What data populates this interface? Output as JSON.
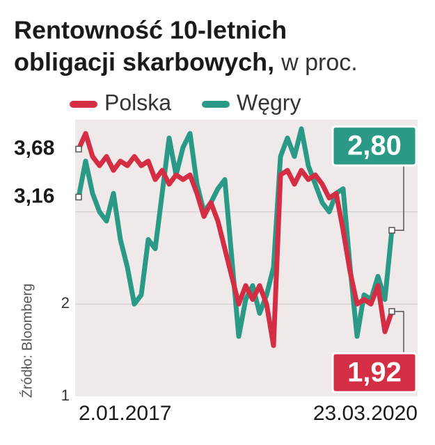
{
  "chart_data": {
    "type": "line",
    "title": [
      "Rentowność 10-letnich",
      "obligacji skarbowych,"
    ],
    "subtitle": "w proc.",
    "source": "Źródło: Bloomberg",
    "categories": [
      "2.01.2017",
      null,
      null,
      null,
      null,
      null,
      null,
      null,
      null,
      null,
      null,
      null,
      null,
      null,
      null,
      null,
      null,
      null,
      null,
      null,
      null,
      null,
      null,
      null,
      null,
      null,
      null,
      null,
      null,
      null,
      null,
      null,
      null,
      null,
      null,
      null,
      null,
      null,
      null,
      null,
      null,
      null,
      null,
      null,
      null,
      "23.03.2020"
    ],
    "series": [
      {
        "name": "Polska",
        "color": "#d42e45",
        "values": [
          3.68,
          3.85,
          3.6,
          3.5,
          3.6,
          3.45,
          3.55,
          3.5,
          3.6,
          3.5,
          3.55,
          3.35,
          3.45,
          3.3,
          3.4,
          3.35,
          3.4,
          3.2,
          2.95,
          3.1,
          2.9,
          2.6,
          2.3,
          2.0,
          2.2,
          2.05,
          2.2,
          2.0,
          1.55,
          3.4,
          3.45,
          3.3,
          3.45,
          3.35,
          3.4,
          3.3,
          3.15,
          3.2,
          2.8,
          2.35,
          2.0,
          2.05,
          2.0,
          2.2,
          1.7,
          1.92
        ],
        "value_labels": [
          "3,68",
          null,
          null,
          null,
          null,
          null,
          null,
          null,
          null,
          null,
          null,
          null,
          null,
          null,
          null,
          null,
          null,
          null,
          null,
          null,
          null,
          null,
          null,
          null,
          null,
          null,
          null,
          null,
          null,
          null,
          null,
          null,
          null,
          null,
          null,
          null,
          null,
          null,
          null,
          null,
          null,
          null,
          null,
          null,
          null,
          "1,92"
        ]
      },
      {
        "name": "Węgry",
        "color": "#2a9a86",
        "values": [
          3.16,
          3.55,
          3.2,
          3.0,
          2.9,
          3.2,
          2.7,
          2.4,
          2.0,
          2.1,
          2.7,
          2.6,
          3.2,
          3.8,
          3.4,
          3.7,
          3.85,
          3.3,
          3.0,
          3.1,
          3.25,
          3.35,
          2.5,
          1.65,
          2.05,
          2.2,
          1.9,
          2.1,
          2.4,
          3.6,
          3.8,
          3.6,
          3.9,
          3.5,
          3.3,
          3.1,
          3.0,
          3.2,
          3.25,
          2.4,
          1.65,
          2.1,
          2.05,
          2.3,
          2.05,
          2.8
        ],
        "value_labels": [
          "3,16",
          null,
          null,
          null,
          null,
          null,
          null,
          null,
          null,
          null,
          null,
          null,
          null,
          null,
          null,
          null,
          null,
          null,
          null,
          null,
          null,
          null,
          null,
          null,
          null,
          null,
          null,
          null,
          null,
          null,
          null,
          null,
          null,
          null,
          null,
          null,
          null,
          null,
          null,
          null,
          null,
          null,
          null,
          null,
          null,
          "2,80"
        ]
      }
    ],
    "ylim": [
      1,
      4.0
    ],
    "yticks": [
      1,
      2
    ],
    "gridlines": [
      2,
      3
    ]
  }
}
